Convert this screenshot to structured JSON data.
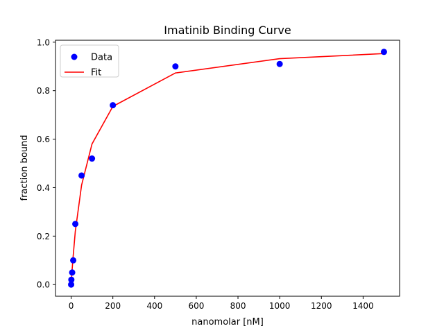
{
  "chart_data": {
    "type": "scatter",
    "title": "Imatinib Binding Curve",
    "xlabel": "nanomolar [nM]",
    "ylabel": "fraction bound",
    "xlim": [
      -75,
      1575
    ],
    "ylim": [
      -0.048,
      1.008
    ],
    "xticks": [
      0,
      200,
      400,
      600,
      800,
      1000,
      1200,
      1400
    ],
    "xtick_labels": [
      "0",
      "200",
      "400",
      "600",
      "800",
      "1000",
      "1200",
      "1400"
    ],
    "yticks": [
      0.0,
      0.2,
      0.4,
      0.6,
      0.8,
      1.0
    ],
    "ytick_labels": [
      "0.0",
      "0.2",
      "0.4",
      "0.6",
      "0.8",
      "1.0"
    ],
    "grid": false,
    "legend_position": "top-left",
    "series": [
      {
        "name": "Data",
        "kind": "markers",
        "color": "#0000ff",
        "points": [
          [
            0,
            0.0
          ],
          [
            1,
            0.02
          ],
          [
            5,
            0.05
          ],
          [
            10,
            0.1
          ],
          [
            20,
            0.25
          ],
          [
            50,
            0.45
          ],
          [
            100,
            0.52
          ],
          [
            200,
            0.74
          ],
          [
            500,
            0.9
          ],
          [
            1000,
            0.91
          ],
          [
            1500,
            0.96
          ]
        ]
      },
      {
        "name": "Fit",
        "kind": "line",
        "color": "#ff0000",
        "points": [
          [
            0,
            0.0
          ],
          [
            1,
            0.013
          ],
          [
            5,
            0.065
          ],
          [
            10,
            0.12
          ],
          [
            20,
            0.22
          ],
          [
            50,
            0.41
          ],
          [
            100,
            0.58
          ],
          [
            200,
            0.735
          ],
          [
            500,
            0.873
          ],
          [
            1000,
            0.932
          ],
          [
            1500,
            0.953
          ]
        ]
      }
    ]
  }
}
